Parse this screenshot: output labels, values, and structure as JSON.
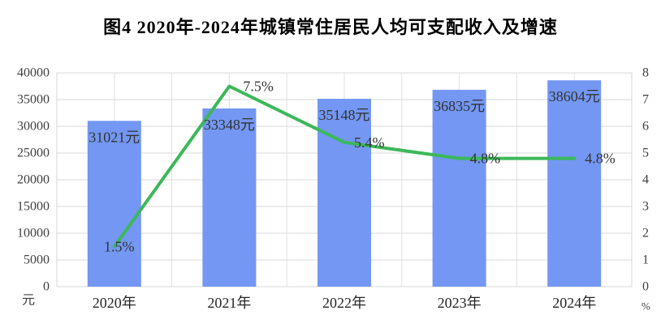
{
  "figure": {
    "title": "图4  2020年-2024年城镇常住居民人均可支配收入及增速"
  },
  "chart_data": {
    "type": "combo-bar-line",
    "title": "图4  2020年-2024年城镇常住居民人均可支配收入及增速",
    "categories": [
      "2020年",
      "2021年",
      "2022年",
      "2023年",
      "2024年"
    ],
    "series": [
      {
        "name": "城镇常住居民人均可支配收入",
        "type": "bar",
        "axis": "left",
        "values": [
          31021,
          33348,
          35148,
          36835,
          38604
        ],
        "data_labels": [
          "31021元",
          "33348元",
          "35148元",
          "36835元",
          "38604元"
        ],
        "color": "#7397F2"
      },
      {
        "name": "增速",
        "type": "line",
        "axis": "right",
        "values": [
          1.5,
          7.5,
          5.4,
          4.8,
          4.8
        ],
        "data_labels": [
          "1.5%",
          "7.5%",
          "5.4%",
          "4.8%",
          "4.8%"
        ],
        "color": "#3CB85A"
      }
    ],
    "left_axis": {
      "unit": "元",
      "min": 0,
      "max": 40000,
      "step": 5000,
      "tick_labels": [
        "0",
        "5000",
        "10000",
        "15000",
        "20000",
        "25000",
        "30000",
        "35000",
        "40000"
      ]
    },
    "right_axis": {
      "unit": "%",
      "min": 0,
      "max": 8,
      "step": 1,
      "tick_labels": [
        "0",
        "1",
        "2",
        "3",
        "4",
        "5",
        "6",
        "7",
        "8"
      ]
    },
    "grid": true,
    "legend_position": "none"
  },
  "colors": {
    "bar": "#7397F2",
    "line": "#3CB85A",
    "gridline_h": "#D9D9D9",
    "gridline_v": "#E2E2E2",
    "plot_border": "#D4D4D4",
    "tick_text": "#404040",
    "category_text": "#262626",
    "data_label_text": "#333333",
    "title_text": "#000000"
  }
}
